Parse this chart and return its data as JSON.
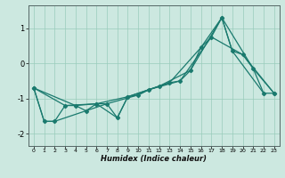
{
  "title": "",
  "xlabel": "Humidex (Indice chaleur)",
  "ylabel": "",
  "bg_color": "#cce8e0",
  "line_color": "#1a7a6e",
  "grid_color": "#99ccbb",
  "xlim": [
    -0.5,
    23.5
  ],
  "ylim": [
    -2.35,
    1.65
  ],
  "xticks": [
    0,
    1,
    2,
    3,
    4,
    5,
    6,
    7,
    8,
    9,
    10,
    11,
    12,
    13,
    14,
    15,
    16,
    17,
    18,
    19,
    20,
    21,
    22,
    23
  ],
  "yticks": [
    -2,
    -1,
    0,
    1
  ],
  "series1": [
    [
      0.0,
      -0.7
    ],
    [
      1.0,
      -1.65
    ],
    [
      2.0,
      -1.65
    ],
    [
      3.0,
      -1.2
    ],
    [
      4.0,
      -1.2
    ],
    [
      5.0,
      -1.35
    ],
    [
      6.0,
      -1.15
    ],
    [
      7.0,
      -1.15
    ],
    [
      8.0,
      -1.55
    ],
    [
      9.0,
      -0.95
    ],
    [
      10.0,
      -0.9
    ],
    [
      11.0,
      -0.75
    ],
    [
      12.0,
      -0.65
    ],
    [
      13.0,
      -0.55
    ],
    [
      14.0,
      -0.5
    ],
    [
      15.0,
      -0.2
    ],
    [
      16.0,
      0.45
    ],
    [
      17.0,
      0.75
    ],
    [
      18.0,
      1.3
    ],
    [
      19.0,
      0.35
    ],
    [
      20.0,
      0.25
    ],
    [
      21.0,
      -0.15
    ],
    [
      22.0,
      -0.85
    ],
    [
      23.0,
      -0.85
    ]
  ],
  "series2": [
    [
      0.0,
      -0.7
    ],
    [
      3.0,
      -1.2
    ],
    [
      6.0,
      -1.15
    ],
    [
      9.0,
      -0.95
    ],
    [
      12.0,
      -0.65
    ],
    [
      15.0,
      -0.2
    ],
    [
      18.0,
      1.3
    ],
    [
      21.0,
      -0.15
    ],
    [
      23.0,
      -0.85
    ]
  ],
  "series3": [
    [
      0.0,
      -0.7
    ],
    [
      4.0,
      -1.2
    ],
    [
      6.0,
      -1.15
    ],
    [
      8.0,
      -1.55
    ],
    [
      9.0,
      -0.95
    ],
    [
      13.0,
      -0.55
    ],
    [
      16.0,
      0.45
    ],
    [
      18.0,
      1.3
    ],
    [
      19.0,
      0.35
    ],
    [
      22.0,
      -0.85
    ]
  ],
  "series4": [
    [
      0.0,
      -0.7
    ],
    [
      1.0,
      -1.65
    ],
    [
      2.0,
      -1.65
    ],
    [
      5.0,
      -1.35
    ],
    [
      7.0,
      -1.15
    ],
    [
      10.0,
      -0.9
    ],
    [
      11.0,
      -0.75
    ],
    [
      14.0,
      -0.5
    ],
    [
      17.0,
      0.75
    ],
    [
      20.0,
      0.25
    ],
    [
      23.0,
      -0.85
    ]
  ]
}
